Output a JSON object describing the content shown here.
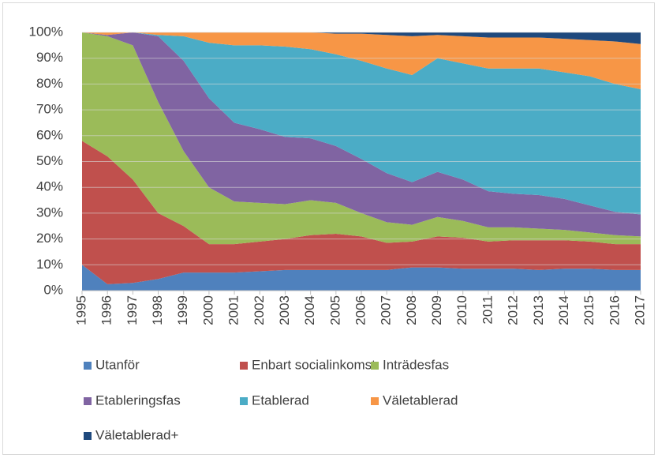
{
  "chart_data": {
    "type": "stacked_area",
    "categories": [
      "1995",
      "1996",
      "1997",
      "1998",
      "1999",
      "2000",
      "2001",
      "2002",
      "2003",
      "2004",
      "2005",
      "2006",
      "2007",
      "2008",
      "2009",
      "2010",
      "2011",
      "2012",
      "2013",
      "2014",
      "2015",
      "2016",
      "2017"
    ],
    "series": [
      {
        "name": "Utanför",
        "color": "#4f81bd",
        "values": [
          10,
          2.5,
          3,
          4.5,
          7,
          7,
          7,
          7.5,
          8,
          8,
          8,
          8,
          8,
          9,
          9,
          8.5,
          8.5,
          8.5,
          8,
          8.5,
          8.5,
          8,
          8
        ]
      },
      {
        "name": "Enbart socialinkomst",
        "color": "#c0504d",
        "values": [
          48,
          49.5,
          40,
          25.5,
          18,
          11,
          11,
          11.5,
          12,
          13.5,
          14,
          13,
          10.5,
          10,
          12,
          12,
          10.5,
          11,
          11.5,
          11,
          10.5,
          10,
          10
        ]
      },
      {
        "name": "Inträdesfas",
        "color": "#9bbb59",
        "values": [
          42,
          46.5,
          52,
          43,
          29,
          22,
          16.5,
          15,
          13.5,
          13.5,
          12,
          9,
          8,
          6.5,
          7.5,
          6.5,
          5.5,
          5,
          4.5,
          4,
          3.5,
          3.5,
          3
        ]
      },
      {
        "name": "Etableringsfas",
        "color": "#8064a2",
        "values": [
          0,
          0.5,
          5,
          25.5,
          35,
          34.5,
          30.5,
          28.5,
          26,
          24,
          22,
          21,
          19,
          16.5,
          17.5,
          16,
          14,
          13,
          13,
          12,
          10.5,
          9,
          8.5
        ]
      },
      {
        "name": "Etablerad",
        "color": "#4bacc6",
        "values": [
          0,
          0,
          0,
          0.5,
          9.5,
          21.5,
          30,
          32.5,
          35,
          34.5,
          35.5,
          38,
          40.5,
          41.5,
          44,
          45,
          47.5,
          48.5,
          49,
          49,
          50,
          49.5,
          48.5
        ]
      },
      {
        "name": "Väletablerad",
        "color": "#f79646",
        "values": [
          0,
          1,
          0,
          1,
          1.5,
          4,
          5,
          5,
          5.5,
          6.5,
          8,
          10.5,
          13,
          15,
          9,
          10.5,
          12,
          12,
          12,
          13,
          14,
          16.5,
          17.5
        ]
      },
      {
        "name": "Väletablerad+",
        "color": "#1f497d",
        "values": [
          0,
          0,
          0,
          0,
          0,
          0,
          0,
          0,
          0,
          0,
          0.5,
          0.5,
          1,
          1.5,
          1,
          1.5,
          2,
          2,
          2,
          2.5,
          3,
          3.5,
          4.5
        ]
      }
    ],
    "ylim": [
      0,
      100
    ],
    "yticks": [
      {
        "value": 0,
        "label": "0%"
      },
      {
        "value": 10,
        "label": "10%"
      },
      {
        "value": 20,
        "label": "20%"
      },
      {
        "value": 30,
        "label": "30%"
      },
      {
        "value": 40,
        "label": "40%"
      },
      {
        "value": 50,
        "label": "50%"
      },
      {
        "value": 60,
        "label": "60%"
      },
      {
        "value": 70,
        "label": "70%"
      },
      {
        "value": 80,
        "label": "80%"
      },
      {
        "value": 90,
        "label": "90%"
      },
      {
        "value": 100,
        "label": "100%"
      }
    ],
    "grid": true
  }
}
